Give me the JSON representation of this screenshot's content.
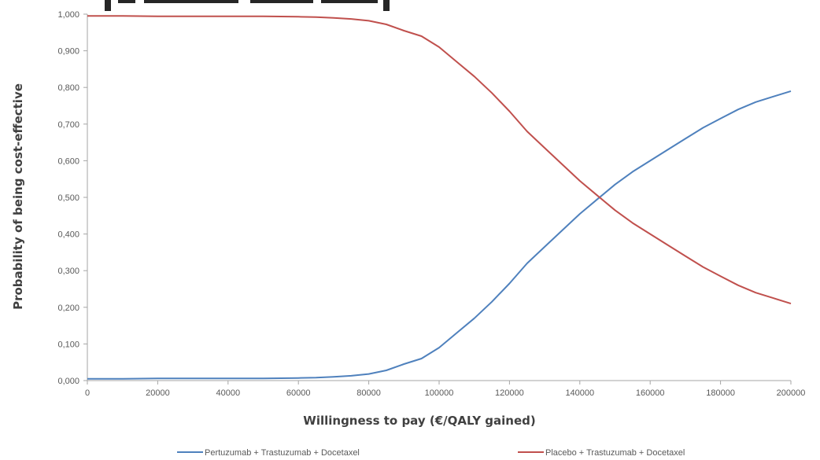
{
  "chart_data": {
    "type": "line",
    "title": "",
    "xlabel": "Willingness to pay (€/QALY gained)",
    "ylabel": "Probability of being cost-effective",
    "xlim": [
      0,
      200000
    ],
    "ylim": [
      0,
      1
    ],
    "x_ticks": [
      0,
      20000,
      40000,
      60000,
      80000,
      100000,
      120000,
      140000,
      160000,
      180000,
      200000
    ],
    "x_tick_labels": [
      "0",
      "20000",
      "40000",
      "60000",
      "80000",
      "100000",
      "120000",
      "140000",
      "160000",
      "180000",
      "200000"
    ],
    "y_ticks": [
      0,
      0.1,
      0.2,
      0.3,
      0.4,
      0.5,
      0.6,
      0.7,
      0.8,
      0.9,
      1.0
    ],
    "y_tick_labels": [
      "0,000",
      "0,100",
      "0,200",
      "0,300",
      "0,400",
      "0,500",
      "0,600",
      "0,700",
      "0,800",
      "0,900",
      "1,000"
    ],
    "grid": false,
    "legend_position": "bottom",
    "x": [
      0,
      10000,
      20000,
      30000,
      40000,
      50000,
      60000,
      65000,
      70000,
      75000,
      80000,
      85000,
      90000,
      95000,
      100000,
      105000,
      110000,
      115000,
      120000,
      125000,
      130000,
      135000,
      140000,
      145000,
      150000,
      155000,
      160000,
      165000,
      170000,
      175000,
      180000,
      185000,
      190000,
      195000,
      200000
    ],
    "series": [
      {
        "name": "Pertuzumab + Trastuzumab + Docetaxel",
        "color": "#4f81bd",
        "values": [
          0.005,
          0.005,
          0.006,
          0.006,
          0.006,
          0.006,
          0.007,
          0.008,
          0.01,
          0.013,
          0.018,
          0.028,
          0.045,
          0.06,
          0.09,
          0.13,
          0.17,
          0.215,
          0.265,
          0.32,
          0.365,
          0.41,
          0.455,
          0.495,
          0.535,
          0.57,
          0.6,
          0.63,
          0.66,
          0.69,
          0.715,
          0.74,
          0.76,
          0.775,
          0.79
        ]
      },
      {
        "name": "Placebo + Trastuzumab + Docetaxel",
        "color": "#c0504d",
        "values": [
          0.995,
          0.995,
          0.994,
          0.994,
          0.994,
          0.994,
          0.993,
          0.992,
          0.99,
          0.987,
          0.982,
          0.972,
          0.955,
          0.94,
          0.91,
          0.87,
          0.83,
          0.785,
          0.735,
          0.68,
          0.635,
          0.59,
          0.545,
          0.505,
          0.465,
          0.43,
          0.4,
          0.37,
          0.34,
          0.31,
          0.285,
          0.26,
          0.24,
          0.225,
          0.21
        ]
      }
    ]
  }
}
